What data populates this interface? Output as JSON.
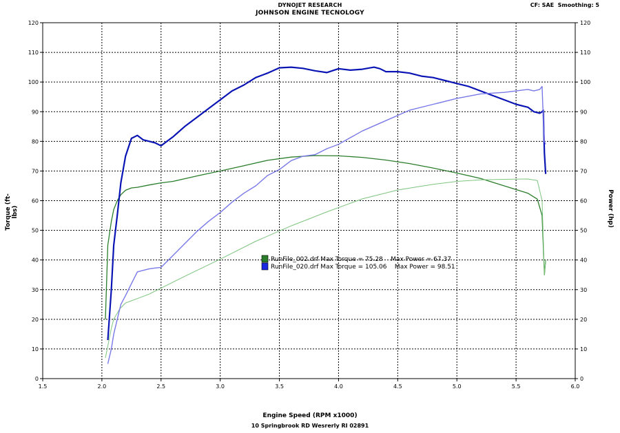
{
  "header": {
    "line1": "DYNOJET RESEARCH",
    "line2": "JOHNSON ENGINE TECNOLOGY",
    "corner": "CF: SAE  Smoothing: 5"
  },
  "footer": "10 Springbrook RD Wesrerly RI 02891",
  "colors": {
    "run002_torque": "#2a7d2a",
    "run002_power": "#7cc47c",
    "run020_torque": "#0a14b4",
    "run020_power": "#7878e8",
    "grid": "#000000"
  },
  "chart_data": {
    "type": "line",
    "xlabel": "Engine Speed (RPM x1000)",
    "ylabel": "Torque (ft-lbs)",
    "y2label": "Power (hp)",
    "xlim": [
      1.5,
      6.0
    ],
    "ylim": [
      0,
      120
    ],
    "y2lim": [
      0,
      120
    ],
    "xticks": [
      "1.5",
      "2.0",
      "2.5",
      "3.0",
      "3.5",
      "4.0",
      "4.5",
      "5.0",
      "5.5",
      "6.0"
    ],
    "yticks": [
      "0",
      "10",
      "20",
      "30",
      "40",
      "50",
      "60",
      "70",
      "80",
      "90",
      "100",
      "110",
      "120"
    ],
    "grid": true,
    "legend": [
      {
        "text": "RunFile_002.drf Max Torque = 75.28    Max Power = 67.37",
        "color": "#2a7d2a"
      },
      {
        "text": "RunFile_020.drf Max Torque = 105.06    Max Power = 98.51",
        "color": "#1a28e0"
      }
    ],
    "series": [
      {
        "role": "RunFile_002 torque",
        "x": [
          2.03,
          2.05,
          2.08,
          2.1,
          2.13,
          2.16,
          2.2,
          2.25,
          2.3,
          2.4,
          2.5,
          2.6,
          2.8,
          3.0,
          3.2,
          3.4,
          3.6,
          3.8,
          4.0,
          4.2,
          4.4,
          4.6,
          4.8,
          5.0,
          5.2,
          5.4,
          5.6,
          5.68,
          5.72,
          5.74,
          5.75
        ],
        "y": [
          20,
          45,
          53,
          57,
          60,
          62,
          63.5,
          64.3,
          64.5,
          65.3,
          66,
          66.5,
          68.3,
          70,
          71.8,
          73.6,
          74.7,
          75.2,
          75.1,
          74.6,
          73.7,
          72.5,
          71,
          69.3,
          67.5,
          65,
          62.5,
          60.5,
          55,
          35,
          40
        ]
      },
      {
        "role": "RunFile_002 power",
        "x": [
          2.03,
          2.05,
          2.08,
          2.1,
          2.15,
          2.2,
          2.3,
          2.4,
          2.5,
          2.7,
          3.0,
          3.3,
          3.6,
          3.9,
          4.2,
          4.5,
          4.8,
          5.0,
          5.2,
          5.4,
          5.6,
          5.68,
          5.72,
          5.74,
          5.75
        ],
        "y": [
          7,
          11,
          17,
          20,
          23.5,
          25.5,
          27,
          28.5,
          30.5,
          34.5,
          40.3,
          46.3,
          51.5,
          56.2,
          60.6,
          63.6,
          65.5,
          66.5,
          67,
          67.2,
          67.3,
          66.8,
          60,
          35,
          40
        ]
      },
      {
        "role": "RunFile_020 torque",
        "x": [
          2.05,
          2.08,
          2.1,
          2.13,
          2.16,
          2.2,
          2.25,
          2.3,
          2.35,
          2.4,
          2.45,
          2.5,
          2.55,
          2.6,
          2.7,
          2.8,
          2.9,
          3.0,
          3.1,
          3.2,
          3.3,
          3.4,
          3.5,
          3.6,
          3.7,
          3.8,
          3.9,
          4.0,
          4.1,
          4.2,
          4.3,
          4.35,
          4.4,
          4.5,
          4.6,
          4.7,
          4.8,
          4.9,
          5.0,
          5.1,
          5.2,
          5.3,
          5.4,
          5.5,
          5.6,
          5.65,
          5.7,
          5.72,
          5.73,
          5.74,
          5.75
        ],
        "y": [
          13,
          30,
          45,
          55,
          66,
          75,
          81,
          82,
          80.5,
          80,
          79.5,
          78.5,
          80,
          81.5,
          85,
          88,
          91,
          94,
          97,
          99,
          101.5,
          103,
          104.8,
          105,
          104.6,
          103.8,
          103.2,
          104.5,
          104,
          104.3,
          105,
          104.5,
          103.5,
          103.5,
          103,
          102,
          101.5,
          100.5,
          99.5,
          98.5,
          97,
          95.5,
          94,
          92.5,
          91.5,
          90,
          89.5,
          90,
          90.5,
          76,
          69
        ]
      },
      {
        "role": "RunFile_020 power",
        "x": [
          2.05,
          2.08,
          2.1,
          2.13,
          2.16,
          2.2,
          2.25,
          2.3,
          2.35,
          2.4,
          2.45,
          2.5,
          2.6,
          2.7,
          2.8,
          2.9,
          3.0,
          3.1,
          3.2,
          3.3,
          3.4,
          3.5,
          3.6,
          3.7,
          3.8,
          3.9,
          4.0,
          4.2,
          4.4,
          4.6,
          4.8,
          5.0,
          5.2,
          5.4,
          5.5,
          5.6,
          5.65,
          5.7,
          5.72,
          5.73,
          5.74,
          5.75
        ],
        "y": [
          5,
          10,
          15,
          20,
          25,
          28,
          32,
          36,
          36.5,
          37,
          37.3,
          37.5,
          41.5,
          45.5,
          49.5,
          53,
          56,
          59.5,
          62.5,
          65,
          68.5,
          70.5,
          73.5,
          75,
          75.5,
          77.5,
          79,
          83.5,
          87,
          90.5,
          92.5,
          94.5,
          96,
          96.5,
          97,
          97.5,
          97,
          97.5,
          98.5,
          88,
          80,
          79
        ]
      }
    ]
  }
}
